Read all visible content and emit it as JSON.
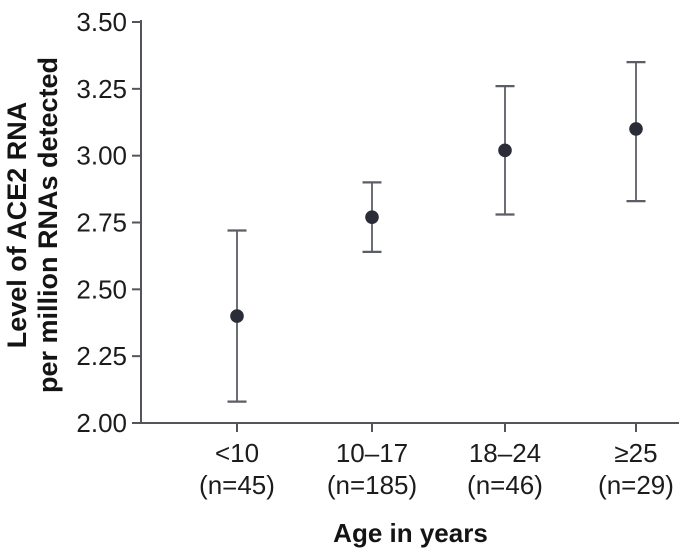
{
  "chart_data": {
    "type": "scatter",
    "subtype": "point-estimates-with-error-bars",
    "title": "",
    "xlabel": "Age in years",
    "ylabel": "Level of ACE2 RNA per million RNAs detected",
    "ylabel_lines": [
      "Level of ACE2 RNA",
      "per million RNAs detected"
    ],
    "ylim": [
      2.0,
      3.5
    ],
    "ytick_values": [
      3.5,
      3.25,
      3.0,
      2.75,
      2.5,
      2.25,
      2.0
    ],
    "ytick_labels": [
      "3.50",
      "3.25",
      "3.00",
      "2.75",
      "2.50",
      "2.25",
      "2.00"
    ],
    "categories": [
      "<10",
      "10–17",
      "18–24",
      "≥25"
    ],
    "category_counts": [
      "(n=45)",
      "(n=185)",
      "(n=46)",
      "(n=29)"
    ],
    "values": [
      2.4,
      2.77,
      3.02,
      3.1
    ],
    "ci_low": [
      2.08,
      2.64,
      2.78,
      2.83
    ],
    "ci_high": [
      2.72,
      2.9,
      3.26,
      3.35
    ],
    "grid": false,
    "legend_position": "none",
    "colors": {
      "point": "#2a2d37",
      "error_bar": "#5c5e66",
      "axis": "#53555b",
      "tick_text": "#1c1c1e",
      "title_text": "#141414"
    }
  }
}
